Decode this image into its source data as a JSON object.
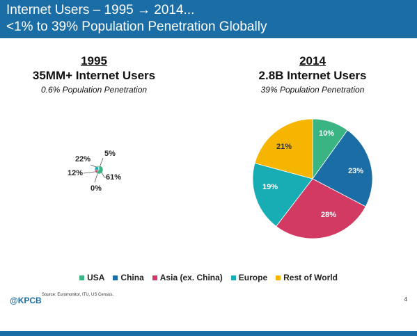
{
  "header": {
    "line1": "Internet Users – 1995 → 2014...",
    "line2": "<1% to 39% Population Penetration Globally"
  },
  "left": {
    "year": "1995",
    "users": "35MM+ Internet Users",
    "penetration": "0.6% Population Penetration"
  },
  "right": {
    "year": "2014",
    "users": "2.8B Internet Users",
    "penetration": "39% Population Penetration"
  },
  "colors": {
    "USA": "#3ab483",
    "China": "#1b6ea5",
    "Asia (ex. China)": "#d23963",
    "Europe": "#18adb4",
    "Rest of World": "#f5b501"
  },
  "chart_data": [
    {
      "type": "pie",
      "title": "1995",
      "categories": [
        "USA",
        "China",
        "Asia (ex. China)",
        "Europe",
        "Rest of World"
      ],
      "values": [
        61,
        0,
        12,
        22,
        5
      ],
      "labels": [
        "61%",
        "0%",
        "12%",
        "22%",
        "5%"
      ]
    },
    {
      "type": "pie",
      "title": "2014",
      "categories": [
        "USA",
        "China",
        "Asia (ex. China)",
        "Europe",
        "Rest of World"
      ],
      "values": [
        10,
        23,
        28,
        19,
        21
      ],
      "labels": [
        "10%",
        "23%",
        "28%",
        "19%",
        "21%"
      ]
    }
  ],
  "legend": [
    "USA",
    "China",
    "Asia (ex. China)",
    "Europe",
    "Rest of World"
  ],
  "footer": {
    "logo": "@KPCB",
    "source": "Source: Euromonitor, ITU, US Census.",
    "page": "4"
  }
}
